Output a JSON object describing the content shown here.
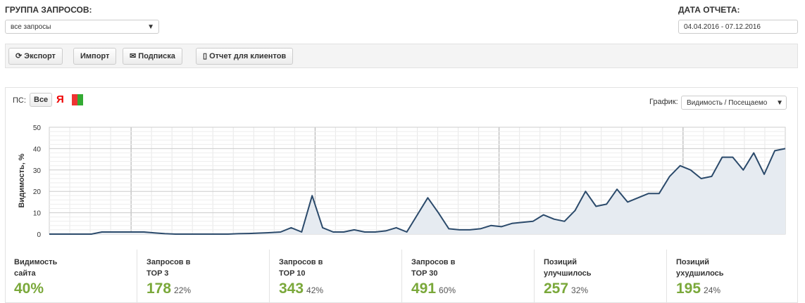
{
  "header": {
    "group_label": "ГРУППА ЗАПРОСОВ:",
    "group_value": "все запросы",
    "date_label": "ДАТА ОТЧЕТА:",
    "date_value": "04.04.2016 - 07.12.2016"
  },
  "toolbar": {
    "buttons": [
      "Экспорт",
      "Импорт",
      "Подписка",
      "Отчет для клиентов"
    ]
  },
  "panel": {
    "engine_label": "ПС:",
    "engine_all": "Все",
    "engine_yandex": "Я",
    "graph_label": "График:",
    "graph_value": "Видимость / Посещаемо"
  },
  "chart_data": {
    "type": "area",
    "y_label": "Видимость, %",
    "color": "#2b4a6b",
    "fill": "#e6ebf1",
    "ylim": [
      0,
      50
    ],
    "yticks": [
      0,
      10,
      20,
      30,
      40,
      50
    ],
    "grid": true,
    "values": [
      0,
      0,
      0,
      0,
      0,
      1,
      1,
      1,
      1,
      1,
      0.6,
      0.2,
      0,
      0,
      0,
      0,
      0,
      0,
      0.2,
      0.3,
      0.5,
      0.7,
      1,
      3,
      1,
      18,
      3,
      1,
      1,
      2,
      1,
      1,
      1.5,
      3,
      1,
      9,
      17,
      10,
      2.5,
      2,
      2,
      2.5,
      4,
      3.5,
      5,
      5.5,
      6,
      9,
      7,
      6,
      11,
      20,
      13,
      14,
      21,
      15,
      17,
      19,
      19,
      27,
      32,
      30,
      26,
      27,
      36,
      36,
      30,
      38,
      28,
      39,
      40
    ]
  },
  "stats": [
    {
      "label": "Видимость сайта",
      "value": "40%"
    },
    {
      "label": "Запросов в TOP 3",
      "value": "178",
      "percent": "22%"
    },
    {
      "label": "Запросов в TOP 10",
      "value": "343",
      "percent": "42%"
    },
    {
      "label": "Запросов в TOP 30",
      "value": "491",
      "percent": "60%"
    },
    {
      "label": "Позиций улучшилось",
      "value": "257",
      "percent": "32%"
    },
    {
      "label": "Позиций ухудшилось",
      "value": "195",
      "percent": "24%"
    }
  ]
}
